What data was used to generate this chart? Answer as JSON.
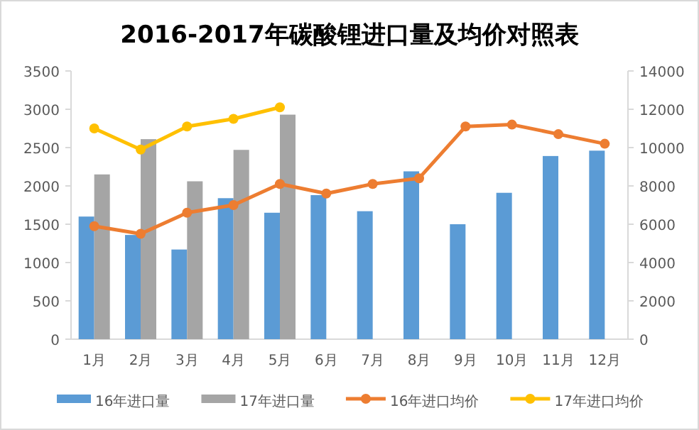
{
  "chart_data": {
    "type": "bar",
    "title": "2016-2017年碳酸锂进口量及均价对照表",
    "categories": [
      "1月",
      "2月",
      "3月",
      "4月",
      "5月",
      "6月",
      "7月",
      "8月",
      "9月",
      "10月",
      "11月",
      "12月"
    ],
    "series": [
      {
        "name": "16年进口量",
        "color": "#5b9bd5",
        "values": [
          1600,
          1360,
          1170,
          1840,
          1650,
          1880,
          1670,
          2190,
          1500,
          1910,
          2390,
          2460
        ]
      },
      {
        "name": "17年进口量",
        "color": "#a5a5a5",
        "values": [
          2150,
          2610,
          2060,
          2470,
          2930,
          null,
          null,
          null,
          null,
          null,
          null,
          null
        ]
      },
      {
        "name": "16年进口均价",
        "type": "line",
        "axis": "y2",
        "marker": "circle",
        "color": "#ed7d31",
        "values": [
          5900,
          5500,
          6600,
          7000,
          8100,
          7600,
          8100,
          8400,
          11100,
          11200,
          10700,
          10200
        ]
      },
      {
        "name": "17年进口均价",
        "type": "line",
        "axis": "y2",
        "marker": "circle",
        "color": "#ffc000",
        "values": [
          11000,
          9900,
          11100,
          11500,
          12100,
          null,
          null,
          null,
          null,
          null,
          null,
          null
        ]
      }
    ],
    "ylim": [
      0,
      3500
    ],
    "yticks": [
      0,
      500,
      1000,
      1500,
      2000,
      2500,
      3000,
      3500
    ],
    "y2lim": [
      0,
      14000
    ],
    "y2ticks": [
      0,
      2000,
      4000,
      6000,
      8000,
      10000,
      12000,
      14000
    ],
    "legend": "bottom"
  }
}
